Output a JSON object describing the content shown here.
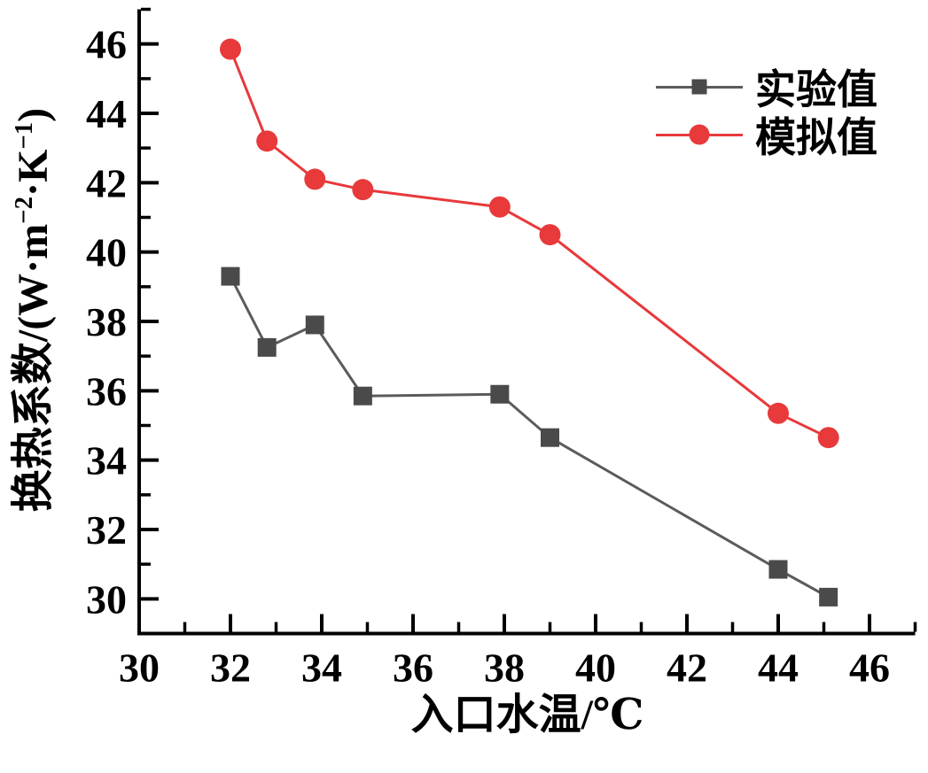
{
  "figure": {
    "background": "#ffffff"
  },
  "chart_data": {
    "type": "line",
    "xlabel": "入口水温/℃",
    "ylabel": "换热系数/(W·m⁻²·K⁻¹)",
    "ylabel_parts": {
      "base1": "换热系数/(W·m",
      "sup1": "−2",
      "base2": "·K",
      "sup2": "−1",
      "base3": ")"
    },
    "xlim": [
      30,
      47
    ],
    "ylim": [
      29,
      47
    ],
    "xticks": [
      30,
      32,
      34,
      36,
      38,
      40,
      42,
      44,
      46
    ],
    "yticks": [
      30,
      32,
      34,
      36,
      38,
      40,
      42,
      44,
      46
    ],
    "x_minor_ticks": [
      31,
      33,
      35,
      37,
      39,
      41,
      43,
      45,
      47
    ],
    "y_minor_ticks": [
      31,
      33,
      35,
      37,
      39,
      41,
      43,
      45,
      47
    ],
    "grid": false,
    "legend_position": "top-right",
    "x": [
      32,
      32.8,
      33.85,
      34.9,
      37.9,
      39,
      44,
      45.1
    ],
    "series": [
      {
        "name": "实验值",
        "marker": "square",
        "marker_color": "#4a4a4a",
        "line_color": "#5b5b5b",
        "values": [
          39.3,
          37.25,
          37.9,
          35.85,
          35.9,
          34.65,
          30.85,
          30.05
        ]
      },
      {
        "name": "模拟值",
        "marker": "circle",
        "marker_color": "#e8393b",
        "line_color": "#e8393b",
        "values": [
          45.85,
          43.2,
          42.1,
          41.8,
          41.3,
          40.5,
          35.35,
          34.65
        ]
      }
    ],
    "axis_color": "#000000"
  }
}
